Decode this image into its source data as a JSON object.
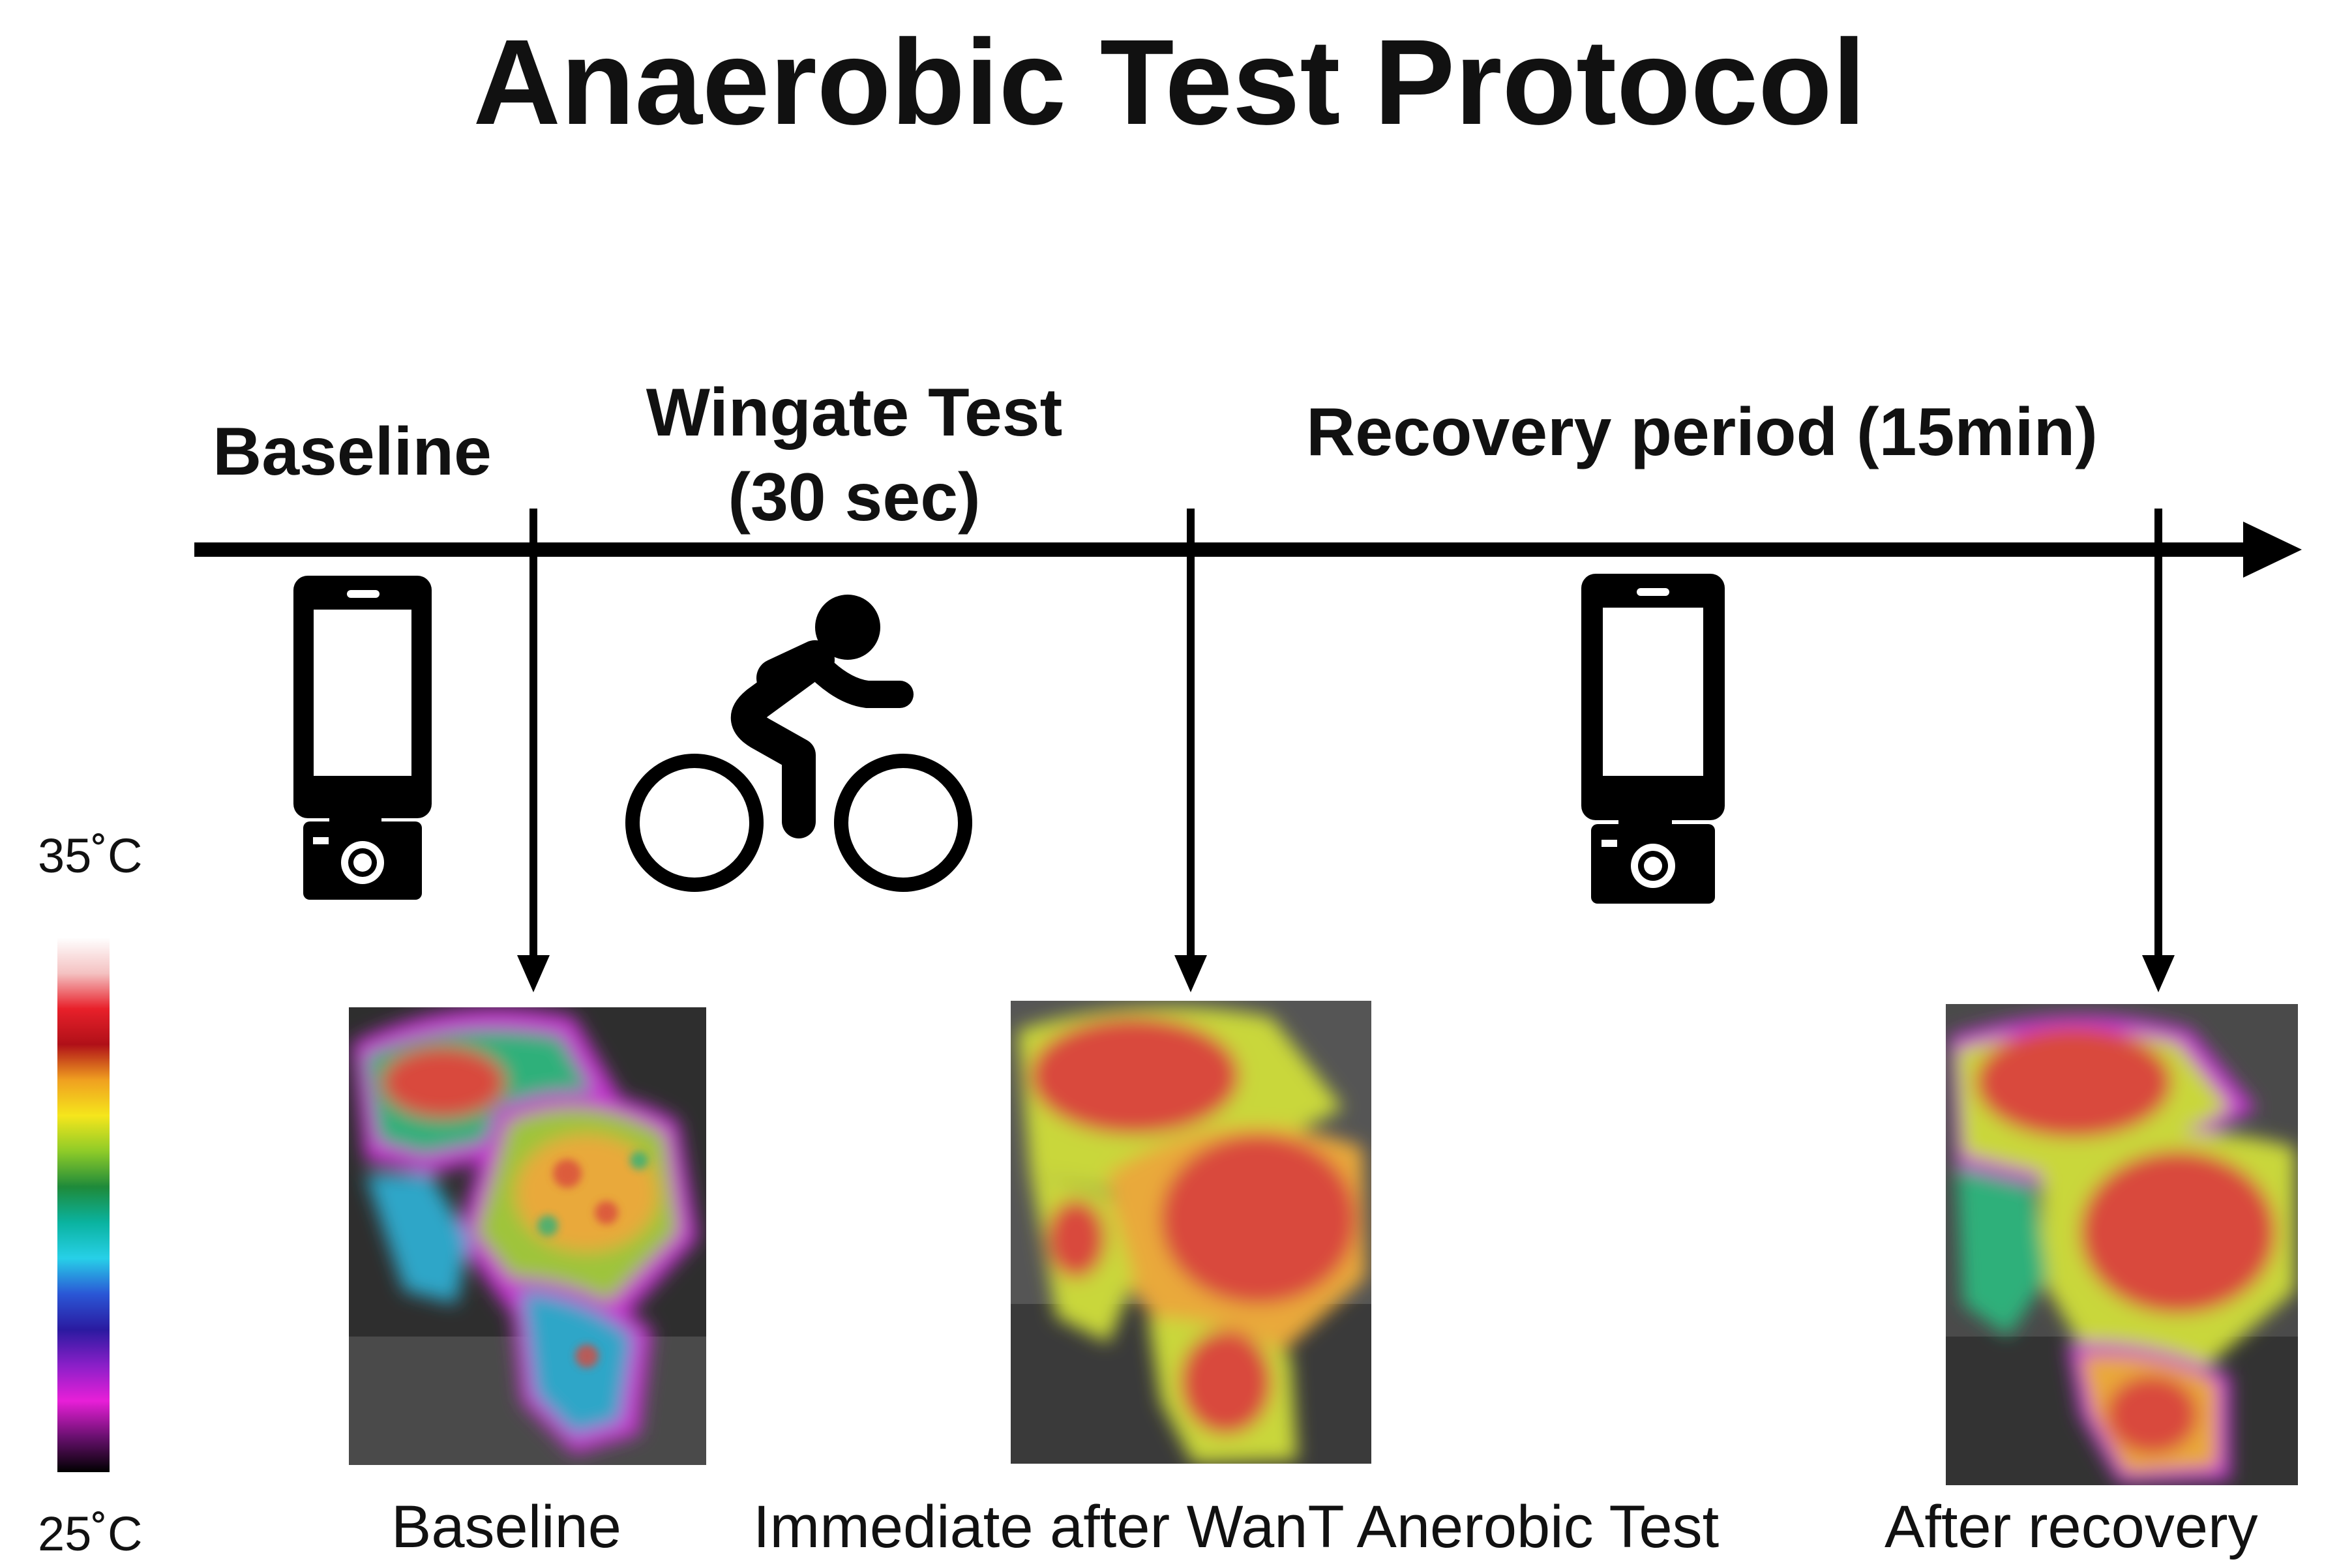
{
  "title": "Anaerobic Test Protocol",
  "phases": {
    "baseline": "Baseline",
    "wingate_line1": "Wingate Test",
    "wingate_line2": "(30 sec)",
    "recovery": "Recovery period (15min)"
  },
  "captions": {
    "baseline": "Baseline",
    "immediate": "Immediate after WanT Anerobic Test",
    "after": "After recovery"
  },
  "color_scale": {
    "max_label": "35˚C",
    "min_label": "25˚C",
    "colors": [
      "#ffffff",
      "#f4c2c2",
      "#e8202a",
      "#b01018",
      "#f0a020",
      "#f5e61c",
      "#8ecb28",
      "#1e8a3a",
      "#0ab3a0",
      "#27d0e8",
      "#2a57d6",
      "#2a1aa0",
      "#8a1fc8",
      "#e81fd8",
      "#6a1070",
      "#000000"
    ]
  },
  "icons": [
    "smartphone-camera-icon",
    "cyclist-icon",
    "smartphone-camera-icon"
  ],
  "thermal_palette": {
    "hot": "#d94a3c",
    "warm": "#e9a93a",
    "mid": "#c9d73a",
    "cool": "#2fb07a",
    "cold": "#2fa6c8",
    "edge": "#c535d0",
    "bg": "#3a3a3a"
  }
}
